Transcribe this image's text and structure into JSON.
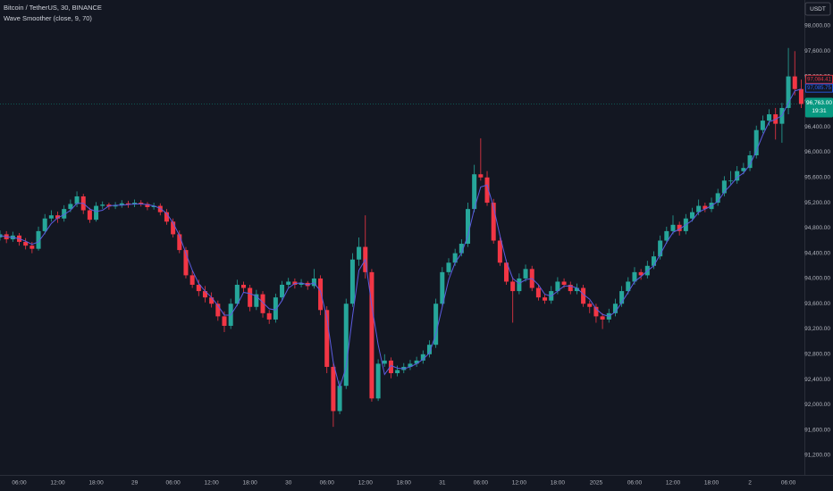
{
  "chart_data": {
    "type": "candlestick",
    "title": "Bitcoin / TetherUS, 30, BINANCE",
    "indicator": "Wave Smoother (close, 9, 70)",
    "currency": "USDT",
    "up_color": "#26a69a",
    "down_color": "#f23645",
    "grid": false,
    "xlim": [
      0,
      125.5
    ],
    "ylim": [
      90917,
      98410
    ],
    "xticks": [
      {
        "value": 3,
        "label": "06:00"
      },
      {
        "value": 9,
        "label": "12:00"
      },
      {
        "value": 15,
        "label": "18:00"
      },
      {
        "value": 21,
        "label": "29"
      },
      {
        "value": 27,
        "label": "06:00"
      },
      {
        "value": 33,
        "label": "12:00"
      },
      {
        "value": 39,
        "label": "18:00"
      },
      {
        "value": 45,
        "label": "30"
      },
      {
        "value": 51,
        "label": "06:00"
      },
      {
        "value": 57,
        "label": "12:00"
      },
      {
        "value": 63,
        "label": "18:00"
      },
      {
        "value": 69,
        "label": "31"
      },
      {
        "value": 75,
        "label": "06:00"
      },
      {
        "value": 81,
        "label": "12:00"
      },
      {
        "value": 87,
        "label": "18:00"
      },
      {
        "value": 93,
        "label": "2025"
      },
      {
        "value": 99,
        "label": "06:00"
      },
      {
        "value": 105,
        "label": "12:00"
      },
      {
        "value": 111,
        "label": "18:00"
      },
      {
        "value": 117,
        "label": "2"
      },
      {
        "value": 123,
        "label": "06:00"
      }
    ],
    "yticks": [
      {
        "value": 98000,
        "label": "98,000.00"
      },
      {
        "value": 97600,
        "label": "97,600.00"
      },
      {
        "value": 97200,
        "label": "97,200.00"
      },
      {
        "value": 96800,
        "label": "96,800.00"
      },
      {
        "value": 96400,
        "label": "96,400.00"
      },
      {
        "value": 96000,
        "label": "96,000.00"
      },
      {
        "value": 95600,
        "label": "95,600.00"
      },
      {
        "value": 95200,
        "label": "95,200.00"
      },
      {
        "value": 94800,
        "label": "94,800.00"
      },
      {
        "value": 94400,
        "label": "94,400.00"
      },
      {
        "value": 94000,
        "label": "94,000.00"
      },
      {
        "value": 93600,
        "label": "93,600.00"
      },
      {
        "value": 93200,
        "label": "93,200.00"
      },
      {
        "value": 92800,
        "label": "92,800.00"
      },
      {
        "value": 92400,
        "label": "92,400.00"
      },
      {
        "value": 92000,
        "label": "92,000.00"
      },
      {
        "value": 91600,
        "label": "91,600.00"
      },
      {
        "value": 91200,
        "label": "91,200.00"
      }
    ],
    "open": [
      94650,
      94700,
      94620,
      94680,
      94580,
      94520,
      94470,
      94750,
      94950,
      95000,
      94950,
      95100,
      95180,
      95300,
      95080,
      94930,
      95150,
      95170,
      95140,
      95160,
      95190,
      95170,
      95200,
      95180,
      95130,
      95150,
      95050,
      94900,
      94700,
      94450,
      94050,
      93900,
      93800,
      93700,
      93600,
      93400,
      93250,
      93600,
      93900,
      93850,
      93550,
      93750,
      93450,
      93350,
      93700,
      93900,
      93950,
      93900,
      93930,
      93880,
      94000,
      93500,
      92600,
      91900,
      92300,
      93600,
      94300,
      94500,
      94100,
      92100,
      92650,
      92700,
      92500,
      92550,
      92600,
      92650,
      92700,
      92800,
      92950,
      93600,
      94100,
      94250,
      94400,
      94550,
      95100,
      95650,
      95600,
      95200,
      94600,
      94250,
      93950,
      93800,
      94000,
      94150,
      93850,
      93700,
      93650,
      93800,
      93950,
      93900,
      93800,
      93850,
      93600,
      93550,
      93400,
      93350,
      93450,
      93600,
      93800,
      93950,
      94100,
      94050,
      94200,
      94350,
      94600,
      94750,
      94850,
      94750,
      94950,
      95050,
      95150,
      95100,
      95200,
      95350,
      95550,
      95550,
      95700,
      95750,
      95950,
      96350,
      96500,
      96600,
      96450,
      96700,
      97200,
      97000
    ],
    "high": [
      94760,
      94750,
      94740,
      94720,
      94640,
      94580,
      94820,
      95020,
      95080,
      95060,
      95160,
      95250,
      95380,
      95340,
      95120,
      95210,
      95220,
      95200,
      95210,
      95240,
      95230,
      95250,
      95240,
      95210,
      95200,
      95190,
      95100,
      94950,
      94760,
      94500,
      94120,
      93980,
      93880,
      93780,
      93650,
      93480,
      93680,
      93980,
      93950,
      93900,
      93820,
      93800,
      93500,
      93760,
      93960,
      94010,
      94000,
      93990,
      93960,
      94150,
      94050,
      93560,
      92680,
      92380,
      93680,
      94400,
      94650,
      95000,
      94150,
      92720,
      92800,
      92750,
      92620,
      92660,
      92710,
      92760,
      92860,
      93020,
      93680,
      94180,
      94320,
      94470,
      94620,
      95200,
      95800,
      96220,
      95700,
      95260,
      94650,
      94300,
      94020,
      94080,
      94220,
      94200,
      93900,
      93750,
      93880,
      94020,
      94000,
      93950,
      93920,
      93900,
      93650,
      93600,
      93450,
      93520,
      93680,
      93880,
      94020,
      94180,
      94150,
      94280,
      94430,
      94680,
      94820,
      95000,
      94900,
      95020,
      95120,
      95250,
      95200,
      95280,
      95420,
      95620,
      95700,
      95780,
      95830,
      96020,
      96420,
      96580,
      96680,
      96700,
      96780,
      97650,
      97600,
      97150
    ],
    "low": [
      94600,
      94560,
      94580,
      94520,
      94460,
      94400,
      94440,
      94700,
      94900,
      94880,
      94900,
      95050,
      95130,
      95020,
      94880,
      94900,
      95100,
      95090,
      95100,
      95120,
      95120,
      95130,
      95140,
      95080,
      95090,
      95000,
      94850,
      94650,
      94400,
      94000,
      93850,
      93720,
      93620,
      93540,
      93330,
      93150,
      93200,
      93560,
      93780,
      93480,
      93500,
      93380,
      93280,
      93300,
      93650,
      93860,
      93840,
      93860,
      93820,
      93840,
      93420,
      92500,
      91650,
      91850,
      92250,
      93550,
      94200,
      94000,
      92050,
      92060,
      92600,
      92420,
      92450,
      92500,
      92550,
      92600,
      92650,
      92750,
      92900,
      93550,
      94050,
      94200,
      94350,
      94500,
      95050,
      95550,
      95150,
      94550,
      94200,
      93900,
      93300,
      93750,
      93950,
      93800,
      93650,
      93600,
      93600,
      93750,
      93850,
      93750,
      93750,
      93550,
      93450,
      93300,
      93200,
      93300,
      93400,
      93550,
      93750,
      93900,
      93980,
      94000,
      94150,
      94300,
      94550,
      94700,
      94680,
      94700,
      94900,
      95000,
      95050,
      95050,
      95150,
      95300,
      95480,
      95500,
      95650,
      95700,
      95900,
      96300,
      96420,
      96200,
      96150,
      96600,
      96900,
      96700
    ],
    "close": [
      94700,
      94620,
      94680,
      94580,
      94520,
      94470,
      94750,
      94950,
      95000,
      94950,
      95100,
      95180,
      95300,
      95080,
      94930,
      95150,
      95170,
      95140,
      95160,
      95190,
      95170,
      95200,
      95180,
      95130,
      95150,
      95050,
      94900,
      94700,
      94450,
      94050,
      93900,
      93800,
      93700,
      93600,
      93400,
      93250,
      93600,
      93900,
      93850,
      93550,
      93750,
      93450,
      93350,
      93700,
      93900,
      93950,
      93900,
      93930,
      93880,
      94000,
      93500,
      92600,
      91900,
      92300,
      93600,
      94300,
      94500,
      94100,
      92100,
      92650,
      92700,
      92500,
      92550,
      92600,
      92650,
      92700,
      92800,
      92950,
      93600,
      94100,
      94250,
      94400,
      94550,
      95100,
      95650,
      95600,
      95200,
      94600,
      94250,
      93950,
      93800,
      94000,
      94150,
      93850,
      93700,
      93650,
      93800,
      93950,
      93900,
      93800,
      93850,
      93600,
      93550,
      93400,
      93350,
      93450,
      93600,
      93800,
      93950,
      94100,
      94050,
      94200,
      94350,
      94600,
      94750,
      94850,
      94750,
      94950,
      95050,
      95150,
      95100,
      95200,
      95350,
      95550,
      95550,
      95700,
      95750,
      95950,
      96350,
      96500,
      96600,
      96450,
      96700,
      97200,
      97000,
      96763
    ],
    "line": {
      "color": "#5c5ce0",
      "values": [
        94680,
        94660,
        94650,
        94630,
        94590,
        94540,
        94580,
        94720,
        94870,
        94960,
        95010,
        95080,
        95190,
        95190,
        95100,
        95060,
        95080,
        95150,
        95160,
        95160,
        95170,
        95180,
        95180,
        95170,
        95150,
        95110,
        95030,
        94880,
        94680,
        94400,
        94130,
        93920,
        93800,
        93700,
        93570,
        93420,
        93420,
        93580,
        93780,
        93760,
        93720,
        93620,
        93520,
        93500,
        93650,
        93850,
        93920,
        93930,
        93900,
        93930,
        93800,
        93380,
        92670,
        92270,
        92600,
        93400,
        94130,
        94300,
        93570,
        92950,
        92480,
        92620,
        92580,
        92570,
        92600,
        92650,
        92720,
        92820,
        93120,
        93550,
        93980,
        94250,
        94400,
        94680,
        95100,
        95450,
        95480,
        95130,
        94680,
        94270,
        94000,
        93920,
        93980,
        94000,
        93900,
        93750,
        93720,
        93800,
        93880,
        93880,
        93850,
        93750,
        93670,
        93520,
        93430,
        93400,
        93470,
        93620,
        93780,
        93950,
        94030,
        94120,
        94200,
        94380,
        94570,
        94730,
        94780,
        94850,
        94920,
        95050,
        95100,
        95150,
        95220,
        95370,
        95480,
        95600,
        95670,
        95800,
        96020,
        96270,
        96480,
        96520,
        96580,
        96780,
        96970,
        97000
      ]
    },
    "last_price": {
      "value": 96763,
      "label": "96,763.00",
      "countdown": "19:31",
      "color": "#089981"
    },
    "price_labels": [
      {
        "value": 97084.41,
        "label": "97,084.41",
        "color": "#f23645"
      },
      {
        "value": 97085.75,
        "label": "97,085.75",
        "color": "#2962ff"
      }
    ]
  }
}
